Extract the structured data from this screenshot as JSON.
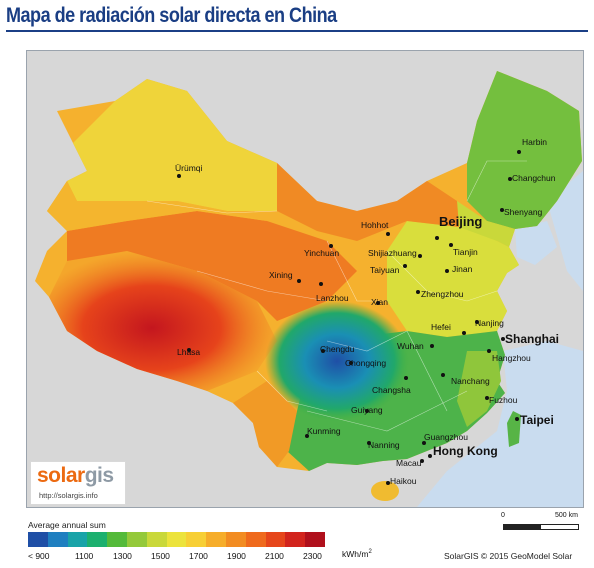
{
  "title": "Mapa de radiación solar directa en China",
  "colors": {
    "water": "#c9dcef",
    "land_neighbors": "#d7d7d7",
    "title": "#1a3e84"
  },
  "cities": [
    {
      "name": "Harbin"
    },
    {
      "name": "Changchun"
    },
    {
      "name": "Shenyang"
    },
    {
      "name": "Ürümqi"
    },
    {
      "name": "Hohhot"
    },
    {
      "name": "Beijing"
    },
    {
      "name": "Yinchuan"
    },
    {
      "name": "Shijiazhuang"
    },
    {
      "name": "Tianjin"
    },
    {
      "name": "Taiyuan"
    },
    {
      "name": "Jinan"
    },
    {
      "name": "Xining"
    },
    {
      "name": "Lanzhou"
    },
    {
      "name": "Xian"
    },
    {
      "name": "Zhengzhou"
    },
    {
      "name": "Hefei"
    },
    {
      "name": "Nanjing"
    },
    {
      "name": "Shanghai"
    },
    {
      "name": "Chengdu"
    },
    {
      "name": "Wuhan"
    },
    {
      "name": "Hangzhou"
    },
    {
      "name": "Lhasa"
    },
    {
      "name": "Chongqing"
    },
    {
      "name": "Changsha"
    },
    {
      "name": "Nanchang"
    },
    {
      "name": "Fuzhou"
    },
    {
      "name": "Guiyang"
    },
    {
      "name": "Taipei"
    },
    {
      "name": "Kunming"
    },
    {
      "name": "Nanning"
    },
    {
      "name": "Guangzhou"
    },
    {
      "name": "Hong Kong"
    },
    {
      "name": "Macau"
    },
    {
      "name": "Haikou"
    }
  ],
  "logo": {
    "brand_part1": "solar",
    "brand_part2": "gis",
    "url": "http://solargis.info"
  },
  "legend": {
    "title": "Average annual sum",
    "ticks": [
      "< 900",
      "1100",
      "1300",
      "1500",
      "1700",
      "1900",
      "2100",
      "2300"
    ],
    "unit": "kWh/m",
    "unit_sup": "2",
    "colors": [
      "#1f4fa6",
      "#1f7fc0",
      "#19a3a8",
      "#1cb06f",
      "#54ba3a",
      "#94c93a",
      "#c9d83a",
      "#ece33c",
      "#f7cf35",
      "#f6ad2a",
      "#f28c22",
      "#ef6a1d",
      "#e6461b",
      "#d2241d",
      "#b0101c"
    ]
  },
  "scale": {
    "start": "0",
    "end": "500",
    "unit": "km"
  },
  "credit": "SolarGIS © 2015 GeoModel Solar"
}
